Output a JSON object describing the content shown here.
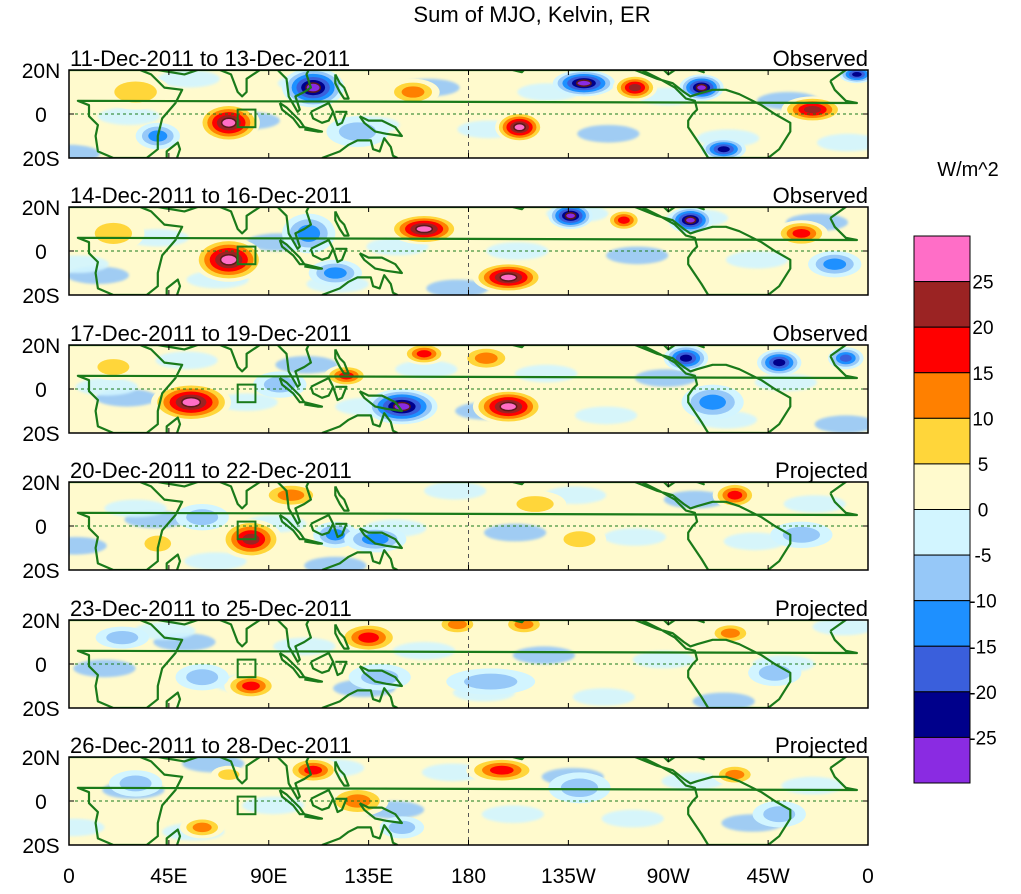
{
  "title": "Sum of MJO, Kelvin, ER",
  "colorbar": {
    "units": "W/m^2",
    "colors": [
      "#8A2BE2",
      "#00008B",
      "#3A5FDC",
      "#1E90FF",
      "#96C8F8",
      "#D2F5FF",
      "#FFFACD",
      "#FFD63A",
      "#FF8000",
      "#FF0000",
      "#9B2323",
      "#FF6EC7"
    ],
    "labels": [
      "-25",
      "-20",
      "-15",
      "-10",
      "-5",
      "0",
      "5",
      "10",
      "15",
      "20",
      "25"
    ]
  },
  "panels": [
    {
      "date_range": "11-Dec-2011 to 13-Dec-2011",
      "status": "Observed"
    },
    {
      "date_range": "14-Dec-2011 to 16-Dec-2011",
      "status": "Observed"
    },
    {
      "date_range": "17-Dec-2011 to 19-Dec-2011",
      "status": "Observed"
    },
    {
      "date_range": "20-Dec-2011 to 22-Dec-2011",
      "status": "Projected"
    },
    {
      "date_range": "23-Dec-2011 to 25-Dec-2011",
      "status": "Projected"
    },
    {
      "date_range": "26-Dec-2011 to 28-Dec-2011",
      "status": "Projected"
    }
  ],
  "lat_labels": [
    "20N",
    "0",
    "20S"
  ],
  "lon_labels": [
    "0",
    "45E",
    "90E",
    "135E",
    "180",
    "135W",
    "90W",
    "45W",
    "0"
  ],
  "lon_values": [
    0,
    45,
    90,
    135,
    180,
    225,
    270,
    315,
    360
  ],
  "blobs": [
    [
      {
        "lon": 72,
        "lat": -4,
        "rx": 14,
        "ry": 9,
        "v": 28
      },
      {
        "lon": 110,
        "lat": 12,
        "rx": 14,
        "ry": 9,
        "v": -28
      },
      {
        "lon": 155,
        "lat": 10,
        "rx": 12,
        "ry": 6,
        "v": 12
      },
      {
        "lon": 232,
        "lat": 14,
        "rx": 14,
        "ry": 6,
        "v": -28
      },
      {
        "lon": 203,
        "lat": -6,
        "rx": 11,
        "ry": 7,
        "v": 28
      },
      {
        "lon": 255,
        "lat": 12,
        "rx": 10,
        "ry": 6,
        "v": 22
      },
      {
        "lon": 285,
        "lat": 12,
        "rx": 10,
        "ry": 6,
        "v": -26
      },
      {
        "lon": 335,
        "lat": 2,
        "rx": 14,
        "ry": 6,
        "v": 22
      },
      {
        "lon": 295,
        "lat": -16,
        "rx": 10,
        "ry": 5,
        "v": -22
      },
      {
        "lon": 30,
        "lat": 10,
        "rx": 16,
        "ry": 8,
        "v": 8
      },
      {
        "lon": 40,
        "lat": -10,
        "rx": 10,
        "ry": 6,
        "v": -10
      },
      {
        "lon": 130,
        "lat": -8,
        "rx": 14,
        "ry": 7,
        "v": -8
      },
      {
        "lon": 355,
        "lat": 18,
        "rx": 8,
        "ry": 4,
        "v": -22
      }
    ],
    [
      {
        "lon": 72,
        "lat": -4,
        "rx": 16,
        "ry": 10,
        "v": 28
      },
      {
        "lon": 108,
        "lat": 8,
        "rx": 12,
        "ry": 9,
        "v": -14
      },
      {
        "lon": 160,
        "lat": 10,
        "rx": 16,
        "ry": 7,
        "v": 26
      },
      {
        "lon": 198,
        "lat": -12,
        "rx": 16,
        "ry": 7,
        "v": 28
      },
      {
        "lon": 226,
        "lat": 16,
        "rx": 10,
        "ry": 6,
        "v": -26
      },
      {
        "lon": 280,
        "lat": 14,
        "rx": 10,
        "ry": 6,
        "v": -26
      },
      {
        "lon": 250,
        "lat": 14,
        "rx": 8,
        "ry": 5,
        "v": 15
      },
      {
        "lon": 330,
        "lat": 8,
        "rx": 12,
        "ry": 6,
        "v": 15
      },
      {
        "lon": 120,
        "lat": -10,
        "rx": 12,
        "ry": 6,
        "v": -14
      },
      {
        "lon": 20,
        "lat": 8,
        "rx": 14,
        "ry": 8,
        "v": 8
      },
      {
        "lon": 345,
        "lat": -6,
        "rx": 12,
        "ry": 6,
        "v": -10
      }
    ],
    [
      {
        "lon": 55,
        "lat": -6,
        "rx": 18,
        "ry": 9,
        "v": 28
      },
      {
        "lon": 198,
        "lat": -8,
        "rx": 16,
        "ry": 8,
        "v": 28
      },
      {
        "lon": 150,
        "lat": -8,
        "rx": 16,
        "ry": 8,
        "v": -26
      },
      {
        "lon": 188,
        "lat": 14,
        "rx": 12,
        "ry": 6,
        "v": 12
      },
      {
        "lon": 160,
        "lat": 16,
        "rx": 10,
        "ry": 5,
        "v": 16
      },
      {
        "lon": 125,
        "lat": 6,
        "rx": 10,
        "ry": 5,
        "v": 16
      },
      {
        "lon": 278,
        "lat": 14,
        "rx": 10,
        "ry": 6,
        "v": -24
      },
      {
        "lon": 320,
        "lat": 12,
        "rx": 10,
        "ry": 6,
        "v": -22
      },
      {
        "lon": 350,
        "lat": 14,
        "rx": 8,
        "ry": 5,
        "v": -16
      },
      {
        "lon": 290,
        "lat": -6,
        "rx": 14,
        "ry": 8,
        "v": -14
      },
      {
        "lon": 95,
        "lat": 2,
        "rx": 12,
        "ry": 6,
        "v": -8
      },
      {
        "lon": 20,
        "lat": 10,
        "rx": 12,
        "ry": 6,
        "v": 8
      }
    ],
    [
      {
        "lon": 82,
        "lat": -6,
        "rx": 14,
        "ry": 9,
        "v": 22
      },
      {
        "lon": 120,
        "lat": -4,
        "rx": 10,
        "ry": 6,
        "v": -12
      },
      {
        "lon": 138,
        "lat": -6,
        "rx": 14,
        "ry": 6,
        "v": -14
      },
      {
        "lon": 300,
        "lat": 14,
        "rx": 10,
        "ry": 6,
        "v": 18
      },
      {
        "lon": 60,
        "lat": 4,
        "rx": 12,
        "ry": 6,
        "v": -8
      },
      {
        "lon": 40,
        "lat": -8,
        "rx": 10,
        "ry": 6,
        "v": 8
      },
      {
        "lon": 230,
        "lat": -6,
        "rx": 12,
        "ry": 6,
        "v": 8
      },
      {
        "lon": 210,
        "lat": 10,
        "rx": 14,
        "ry": 6,
        "v": 5
      },
      {
        "lon": 330,
        "lat": -4,
        "rx": 14,
        "ry": 6,
        "v": -8
      },
      {
        "lon": 100,
        "lat": 14,
        "rx": 14,
        "ry": 6,
        "v": 12
      }
    ],
    [
      {
        "lon": 82,
        "lat": -10,
        "rx": 12,
        "ry": 6,
        "v": 18
      },
      {
        "lon": 135,
        "lat": 12,
        "rx": 14,
        "ry": 7,
        "v": 15
      },
      {
        "lon": 175,
        "lat": 18,
        "rx": 10,
        "ry": 5,
        "v": 12
      },
      {
        "lon": 205,
        "lat": 18,
        "rx": 10,
        "ry": 5,
        "v": 12
      },
      {
        "lon": 140,
        "lat": -6,
        "rx": 14,
        "ry": 6,
        "v": -8
      },
      {
        "lon": 190,
        "lat": -8,
        "rx": 20,
        "ry": 6,
        "v": -9
      },
      {
        "lon": 298,
        "lat": 14,
        "rx": 10,
        "ry": 5,
        "v": 10
      },
      {
        "lon": 60,
        "lat": -6,
        "rx": 12,
        "ry": 6,
        "v": -8
      },
      {
        "lon": 318,
        "lat": -4,
        "rx": 12,
        "ry": 6,
        "v": -8
      },
      {
        "lon": 24,
        "lat": 12,
        "rx": 12,
        "ry": 5,
        "v": -6
      }
    ],
    [
      {
        "lon": 110,
        "lat": 14,
        "rx": 12,
        "ry": 6,
        "v": 18
      },
      {
        "lon": 195,
        "lat": 14,
        "rx": 16,
        "ry": 6,
        "v": 18
      },
      {
        "lon": 130,
        "lat": 0,
        "rx": 14,
        "ry": 7,
        "v": 10
      },
      {
        "lon": 230,
        "lat": 6,
        "rx": 14,
        "ry": 7,
        "v": -8
      },
      {
        "lon": 150,
        "lat": -12,
        "rx": 10,
        "ry": 5,
        "v": -9
      },
      {
        "lon": 300,
        "lat": 12,
        "rx": 10,
        "ry": 5,
        "v": 10
      },
      {
        "lon": 320,
        "lat": -6,
        "rx": 12,
        "ry": 6,
        "v": -8
      },
      {
        "lon": 60,
        "lat": -12,
        "rx": 10,
        "ry": 5,
        "v": 10
      },
      {
        "lon": 30,
        "lat": 8,
        "rx": 12,
        "ry": 6,
        "v": -6
      },
      {
        "lon": 72,
        "lat": 12,
        "rx": 8,
        "ry": 4,
        "v": 8
      }
    ]
  ]
}
